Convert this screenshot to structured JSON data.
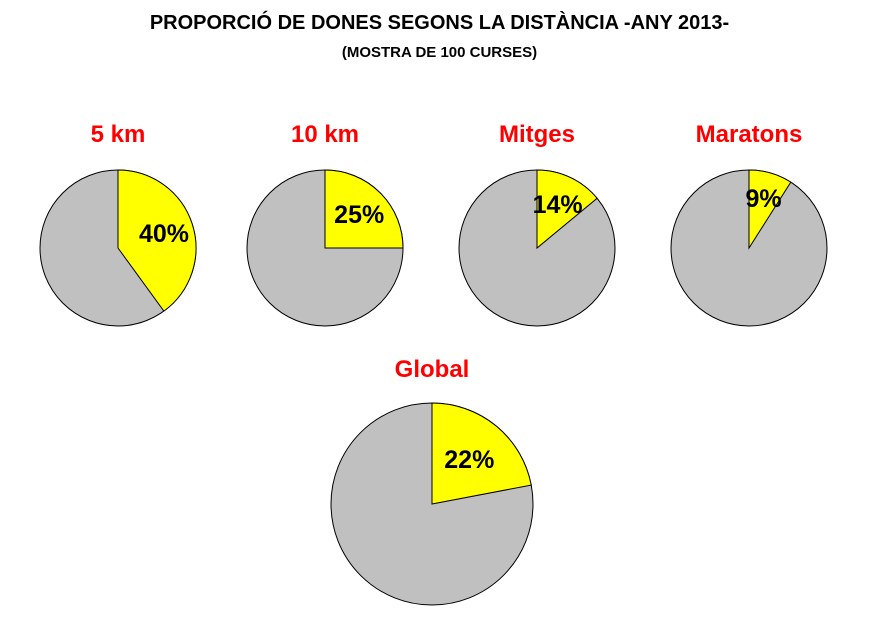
{
  "header": {
    "title": "PROPORCIÓ DE DONES SEGONS LA DISTÀNCIA -ANY 2013-",
    "subtitle": "(MOSTRA DE 100 CURSES)"
  },
  "colors": {
    "women": "#ffff00",
    "rest": "#c0c0c0",
    "title_red": "#ff0000",
    "outline": "#000000"
  },
  "chart_data": [
    {
      "type": "pie",
      "title": "5 km",
      "values": [
        40,
        60
      ],
      "labels": [
        "40%",
        ""
      ]
    },
    {
      "type": "pie",
      "title": "10 km",
      "values": [
        25,
        75
      ],
      "labels": [
        "25%",
        ""
      ]
    },
    {
      "type": "pie",
      "title": "Mitges",
      "values": [
        14,
        86
      ],
      "labels": [
        "14%",
        ""
      ]
    },
    {
      "type": "pie",
      "title": "Maratons",
      "values": [
        9,
        91
      ],
      "labels": [
        "9%",
        ""
      ]
    },
    {
      "type": "pie",
      "title": "Global",
      "values": [
        22,
        78
      ],
      "labels": [
        "22%",
        ""
      ]
    }
  ]
}
